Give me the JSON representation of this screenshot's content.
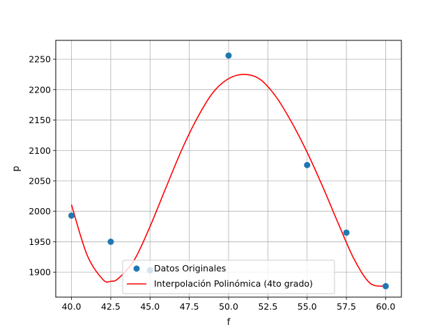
{
  "chart_data": {
    "type": "scatter",
    "xlabel": "f",
    "ylabel": "p",
    "xlim": [
      39.0,
      61.0
    ],
    "ylim": [
      1859,
      2281
    ],
    "xticks": [
      "40.0",
      "42.5",
      "45.0",
      "47.5",
      "50.0",
      "52.5",
      "55.0",
      "57.5",
      "60.0"
    ],
    "yticks": [
      "1900",
      "1950",
      "2000",
      "2050",
      "2100",
      "2150",
      "2200",
      "2250"
    ],
    "grid": true,
    "legend_position": "lower center",
    "series": [
      {
        "name": "Datos Originales",
        "kind": "scatter",
        "color": "#1f77b4",
        "x": [
          40.0,
          42.5,
          45.0,
          50.0,
          55.0,
          57.5,
          60.0
        ],
        "y": [
          1993,
          1950,
          1903,
          2256,
          2076,
          1965,
          1877
        ]
      },
      {
        "name": "Interpolación Polinómica (4to grado)",
        "kind": "line",
        "color": "#ff0000",
        "x": [
          40.0,
          41.0,
          42.0,
          42.5,
          43.0,
          44.0,
          45.0,
          46.0,
          47.0,
          48.0,
          49.0,
          50.0,
          51.0,
          52.0,
          53.0,
          54.0,
          55.0,
          56.0,
          57.0,
          58.0,
          59.0,
          60.0
        ],
        "y": [
          2011,
          1928,
          1888,
          1885,
          1890,
          1920,
          1975,
          2038,
          2100,
          2153,
          2195,
          2218,
          2225,
          2217,
          2189,
          2147,
          2097,
          2040,
          1979,
          1921,
          1882,
          1877
        ]
      }
    ]
  }
}
